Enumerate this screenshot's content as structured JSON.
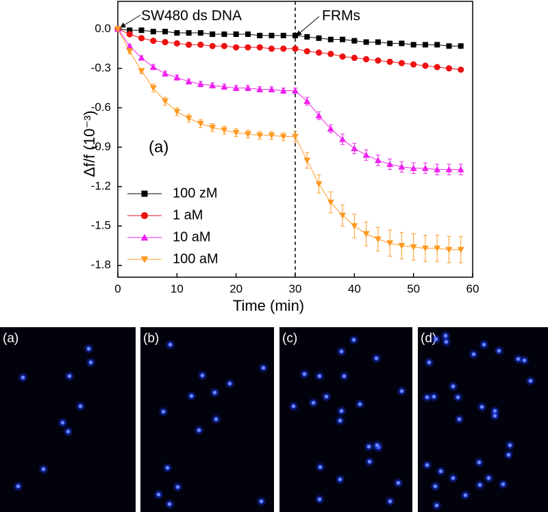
{
  "chart_data": {
    "type": "line",
    "xlabel": "Time (min)",
    "ylabel": "Δf/f (10⁻³)",
    "annotations": [
      "SW480 ds DNA",
      "FRMs",
      "(a)"
    ],
    "vline": 30,
    "xlim": [
      0,
      60
    ],
    "xticks": [
      0,
      10,
      20,
      30,
      40,
      50,
      60
    ],
    "ylim": [
      -1.89,
      0.21
    ],
    "yticks": [
      {
        "value": 0,
        "label": "0.0"
      },
      -0.3,
      -0.6,
      -0.9,
      -1.2,
      -1.5,
      -1.8
    ],
    "legend": "lower left",
    "x": [
      0,
      2,
      4,
      6,
      8,
      10,
      12,
      14,
      16,
      18,
      20,
      22,
      24,
      26,
      28,
      30,
      32,
      34,
      36,
      38,
      40,
      42,
      44,
      46,
      48,
      50,
      52,
      54,
      56,
      58
    ],
    "series": [
      {
        "name": "100 zM",
        "color": "#000000",
        "marker": "square",
        "values": [
          0,
          -0.01,
          -0.01,
          -0.02,
          -0.02,
          -0.03,
          -0.03,
          -0.03,
          -0.04,
          -0.04,
          -0.04,
          -0.04,
          -0.05,
          -0.05,
          -0.05,
          -0.05,
          -0.06,
          -0.07,
          -0.08,
          -0.08,
          -0.09,
          -0.1,
          -0.1,
          -0.11,
          -0.11,
          -0.12,
          -0.12,
          -0.12,
          -0.13,
          -0.13
        ]
      },
      {
        "name": "1 aM",
        "color": "#ee1111",
        "marker": "circle",
        "values": [
          0,
          -0.04,
          -0.07,
          -0.09,
          -0.1,
          -0.11,
          -0.12,
          -0.12,
          -0.13,
          -0.13,
          -0.14,
          -0.14,
          -0.14,
          -0.15,
          -0.15,
          -0.15,
          -0.17,
          -0.18,
          -0.19,
          -0.21,
          -0.22,
          -0.23,
          -0.24,
          -0.25,
          -0.26,
          -0.27,
          -0.28,
          -0.29,
          -0.3,
          -0.31
        ]
      },
      {
        "name": "10 aM",
        "color": "#ee22ee",
        "marker": "triangle-up",
        "values": [
          0,
          -0.13,
          -0.22,
          -0.29,
          -0.34,
          -0.37,
          -0.4,
          -0.42,
          -0.43,
          -0.44,
          -0.45,
          -0.45,
          -0.46,
          -0.46,
          -0.47,
          -0.47,
          -0.55,
          -0.66,
          -0.76,
          -0.84,
          -0.91,
          -0.96,
          -1.0,
          -1.03,
          -1.05,
          -1.06,
          -1.06,
          -1.07,
          -1.07,
          -1.07
        ],
        "errors": [
          0,
          0.01,
          0.015,
          0.02,
          0.02,
          0.02,
          0.02,
          0.02,
          0.02,
          0.02,
          0.02,
          0.02,
          0.02,
          0.02,
          0.02,
          0.02,
          0.03,
          0.03,
          0.03,
          0.04,
          0.04,
          0.04,
          0.04,
          0.04,
          0.04,
          0.04,
          0.04,
          0.04,
          0.04,
          0.04
        ]
      },
      {
        "name": "100 aM",
        "color": "#ff9922",
        "marker": "triangle-down",
        "values": [
          0,
          -0.17,
          -0.32,
          -0.45,
          -0.55,
          -0.63,
          -0.68,
          -0.72,
          -0.75,
          -0.77,
          -0.79,
          -0.8,
          -0.81,
          -0.81,
          -0.82,
          -0.82,
          -1.0,
          -1.18,
          -1.32,
          -1.42,
          -1.5,
          -1.56,
          -1.6,
          -1.63,
          -1.65,
          -1.66,
          -1.67,
          -1.67,
          -1.68,
          -1.68
        ],
        "errors": [
          0,
          0.02,
          0.02,
          0.03,
          0.03,
          0.03,
          0.03,
          0.03,
          0.03,
          0.03,
          0.03,
          0.03,
          0.03,
          0.03,
          0.03,
          0.04,
          0.06,
          0.07,
          0.08,
          0.08,
          0.09,
          0.09,
          0.09,
          0.1,
          0.1,
          0.1,
          0.1,
          0.1,
          0.1,
          0.1
        ]
      }
    ]
  },
  "panels": [
    {
      "label": "(a)"
    },
    {
      "label": "(b)"
    },
    {
      "label": "(c)"
    },
    {
      "label": "(d)"
    }
  ]
}
